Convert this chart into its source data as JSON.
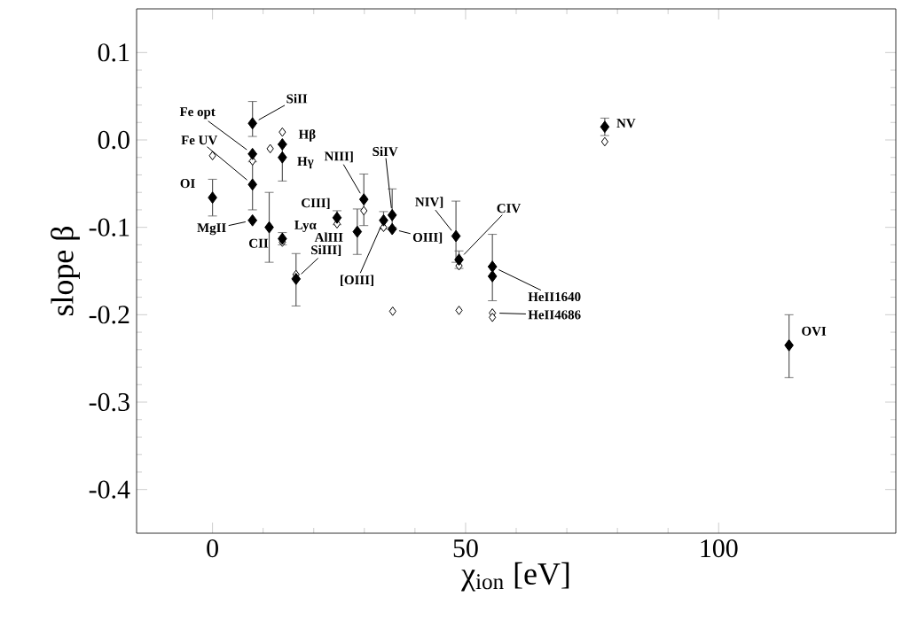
{
  "chart_data": {
    "type": "scatter",
    "xlabel": "χ$_{ion}$ [eV]",
    "ylabel": "slope β",
    "xlim": [
      -15,
      135
    ],
    "ylim": [
      -0.45,
      0.15
    ],
    "xticks": [
      0,
      50,
      100
    ],
    "yticks": [
      -0.4,
      -0.3,
      -0.2,
      -0.1,
      {
        "value": 0,
        "label": "0.0"
      },
      0.1
    ],
    "marker": "diamond",
    "series": [
      {
        "color": "#000000",
        "x": [
          0,
          7.9,
          7.9,
          7.9,
          7.9,
          13.8,
          13.8,
          11.2,
          13.8,
          16.5,
          24.6,
          28.6,
          29.9,
          33.8,
          35.5,
          35.5,
          48.1,
          48.7,
          55.3,
          55.3,
          77.5,
          113.9
        ],
        "values": [
          -0.066,
          0.019,
          -0.016,
          -0.051,
          -0.092,
          -0.005,
          -0.02,
          -0.1,
          -0.113,
          -0.159,
          -0.089,
          -0.105,
          -0.068,
          -0.092,
          -0.086,
          -0.102,
          -0.11,
          -0.137,
          -0.145,
          -0.156,
          0.015,
          -0.235
        ],
        "errors": [
          [
            -0.087,
            -0.045
          ],
          [
            0.004,
            0.044
          ],
          null,
          [
            -0.08,
            -0.025
          ],
          null,
          null,
          [
            -0.047,
            -0.005
          ],
          [
            -0.14,
            -0.06
          ],
          0.007,
          [
            -0.19,
            -0.13
          ],
          0.008,
          [
            -0.131,
            -0.079
          ],
          [
            -0.098,
            -0.039
          ],
          0.01,
          [
            -0.1,
            -0.056
          ],
          null,
          [
            -0.14,
            -0.07
          ],
          0.01,
          null,
          [
            -0.184,
            -0.108
          ],
          0.01,
          [
            -0.272,
            -0.2
          ]
        ]
      },
      {
        "color": "#ffffff",
        "x": [
          0,
          7.9,
          11.4,
          13.8,
          13.8,
          16.5,
          24.6,
          29.9,
          33.8,
          35.6,
          48.7,
          48.7,
          55.3,
          55.3,
          77.5
        ],
        "values": [
          -0.018,
          -0.024,
          -0.01,
          0.009,
          -0.117,
          -0.154,
          -0.096,
          -0.081,
          -0.1,
          -0.196,
          -0.144,
          -0.195,
          -0.198,
          -0.203,
          -0.002
        ]
      }
    ],
    "annotations": [
      {
        "text": "OI",
        "x": 0,
        "y": -0.066
      },
      {
        "text": "Fe opt",
        "x": 7.9,
        "y": -0.016
      },
      {
        "text": "Fe UV",
        "x": 7.9,
        "y": -0.051
      },
      {
        "text": "SiII",
        "x": 7.9,
        "y": 0.019
      },
      {
        "text": "Hβ",
        "x": 13.8,
        "y": -0.005
      },
      {
        "text": "Hγ",
        "x": 13.8,
        "y": -0.02
      },
      {
        "text": "MgII",
        "x": 7.9,
        "y": -0.092
      },
      {
        "text": "Lyα",
        "x": 13.8,
        "y": -0.113
      },
      {
        "text": "CII",
        "x": 11.2,
        "y": -0.1
      },
      {
        "text": "SiIII]",
        "x": 16.5,
        "y": -0.159
      },
      {
        "text": "CIII]",
        "x": 24.6,
        "y": -0.089
      },
      {
        "text": "AlIII",
        "x": 28.6,
        "y": -0.105
      },
      {
        "text": "NIII]",
        "x": 29.9,
        "y": -0.068
      },
      {
        "text": "SiIV",
        "x": 35.5,
        "y": -0.086
      },
      {
        "text": "[OIII]",
        "x": 33.8,
        "y": -0.092
      },
      {
        "text": "OIII]",
        "x": 35.5,
        "y": -0.102
      },
      {
        "text": "NIV]",
        "x": 48.1,
        "y": -0.11
      },
      {
        "text": "CIV",
        "x": 48.7,
        "y": -0.137
      },
      {
        "text": "HeII1640",
        "x": 55.3,
        "y": -0.145
      },
      {
        "text": "HeII4686",
        "x": 55.3,
        "y": -0.198
      },
      {
        "text": "NV",
        "x": 77.5,
        "y": 0.015
      },
      {
        "text": "OVI",
        "x": 113.9,
        "y": -0.235
      }
    ]
  }
}
